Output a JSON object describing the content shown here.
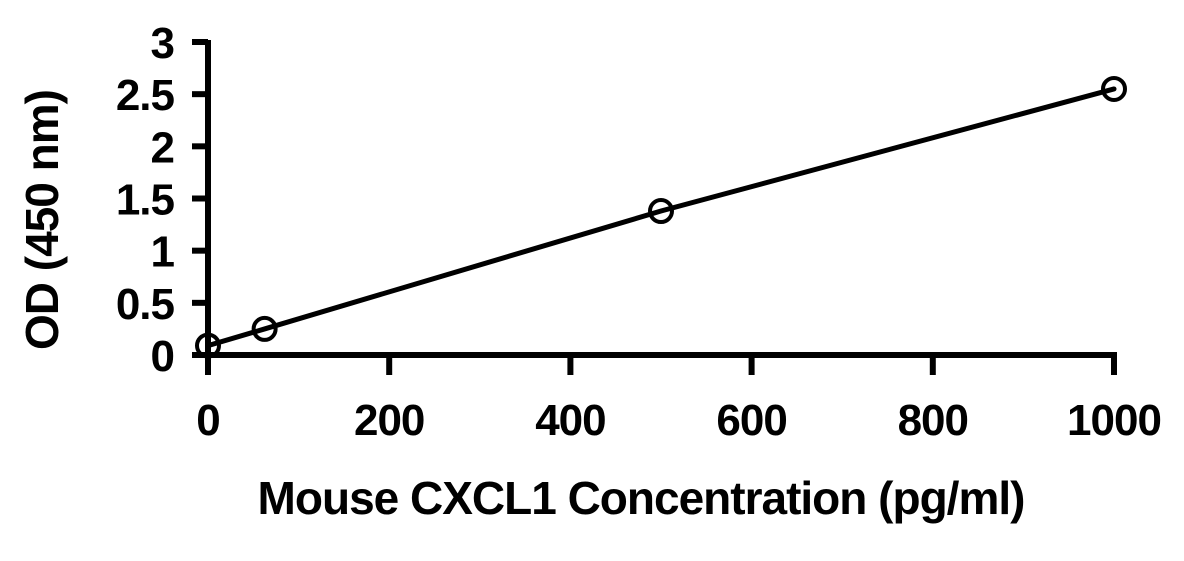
{
  "figure": {
    "background": "#ffffff",
    "ink_color": "#000000"
  },
  "chart_data": {
    "type": "line",
    "xlabel": "Mouse CXCL1 Concentration (pg/ml)",
    "ylabel": "OD (450 nm)",
    "x": [
      0,
      62.5,
      500,
      1000
    ],
    "y": [
      0.09,
      0.25,
      1.38,
      2.55
    ],
    "marker": "open-circle",
    "marker_fill": "none",
    "line_color": "#000000",
    "xlim": [
      0,
      1000
    ],
    "ylim": [
      0,
      3
    ],
    "x_ticks": [
      0,
      200,
      400,
      600,
      800,
      1000
    ],
    "x_tick_labels": [
      "0",
      "200",
      "400",
      "600",
      "800",
      "1000"
    ],
    "y_ticks": [
      0,
      0.5,
      1,
      1.5,
      2,
      2.5,
      3
    ],
    "y_tick_labels": [
      "0",
      "0.5",
      "1",
      "1.5",
      "2",
      "2.5",
      "3"
    ],
    "grid": false,
    "legend": "none",
    "title": ""
  }
}
